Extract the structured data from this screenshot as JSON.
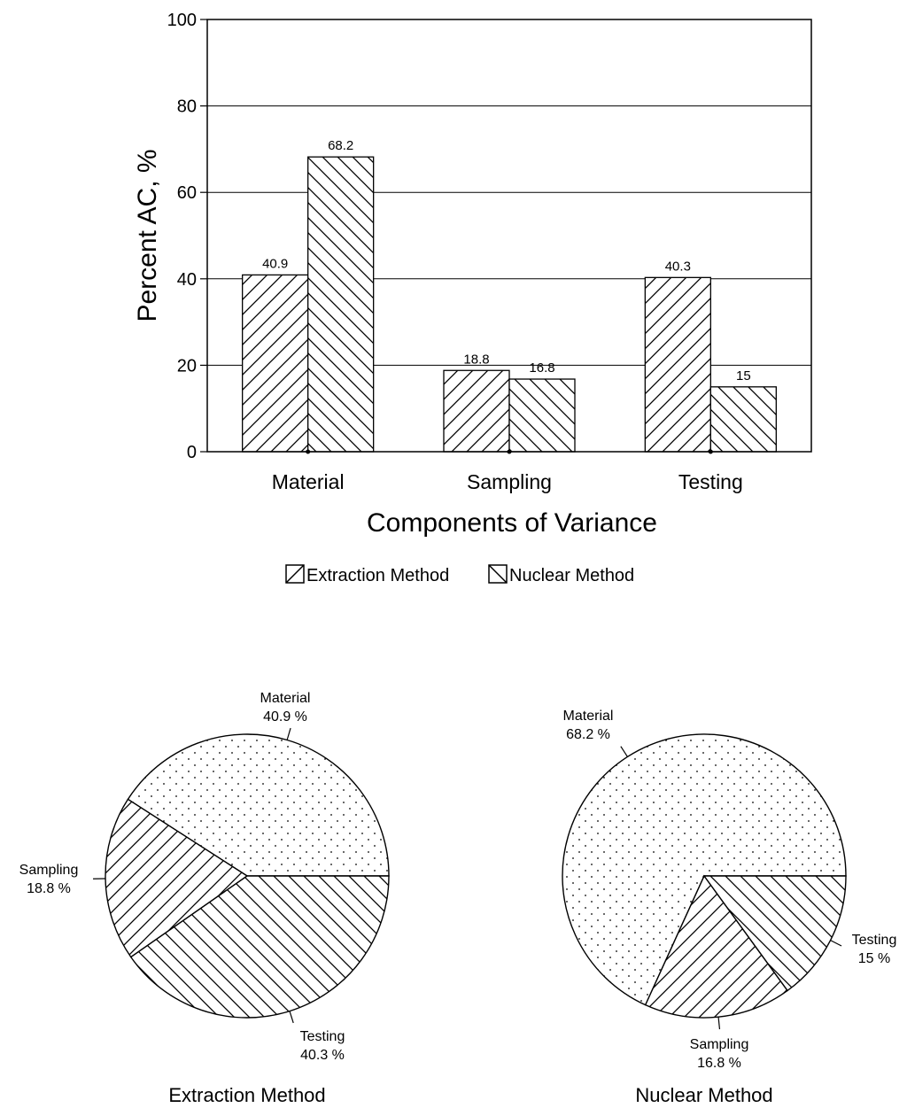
{
  "chart_data": [
    {
      "type": "bar",
      "xlabel": "Components of Variance",
      "ylabel": "Percent AC, %",
      "ylim": [
        0,
        100
      ],
      "yticks": [
        "0",
        "20",
        "40",
        "60",
        "80",
        "100"
      ],
      "grid": "horizontal",
      "legend_position": "bottom",
      "categories": [
        "Material",
        "Sampling",
        "Testing"
      ],
      "series": [
        {
          "name": "Extraction Method",
          "values": [
            40.9,
            18.8,
            40.3
          ],
          "labels": [
            "40.9",
            "18.8",
            "40.3"
          ],
          "pattern": "forward-hatch"
        },
        {
          "name": "Nuclear Method",
          "values": [
            68.2,
            16.8,
            15
          ],
          "labels": [
            "68.2",
            "16.8",
            "15"
          ],
          "pattern": "back-hatch"
        }
      ]
    },
    {
      "type": "pie",
      "title": "Extraction Method",
      "slices": [
        {
          "name": "Material",
          "value": 40.9,
          "label": "40.9 %",
          "pattern": "dots"
        },
        {
          "name": "Sampling",
          "value": 18.8,
          "label": "18.8 %",
          "pattern": "forward-hatch"
        },
        {
          "name": "Testing",
          "value": 40.3,
          "label": "40.3 %",
          "pattern": "back-hatch"
        }
      ]
    },
    {
      "type": "pie",
      "title": "Nuclear Method",
      "slices": [
        {
          "name": "Material",
          "value": 68.2,
          "label": "68.2 %",
          "pattern": "dots"
        },
        {
          "name": "Sampling",
          "value": 16.8,
          "label": "16.8 %",
          "pattern": "forward-hatch"
        },
        {
          "name": "Testing",
          "value": 15,
          "label": "15 %",
          "pattern": "back-hatch"
        }
      ]
    }
  ]
}
